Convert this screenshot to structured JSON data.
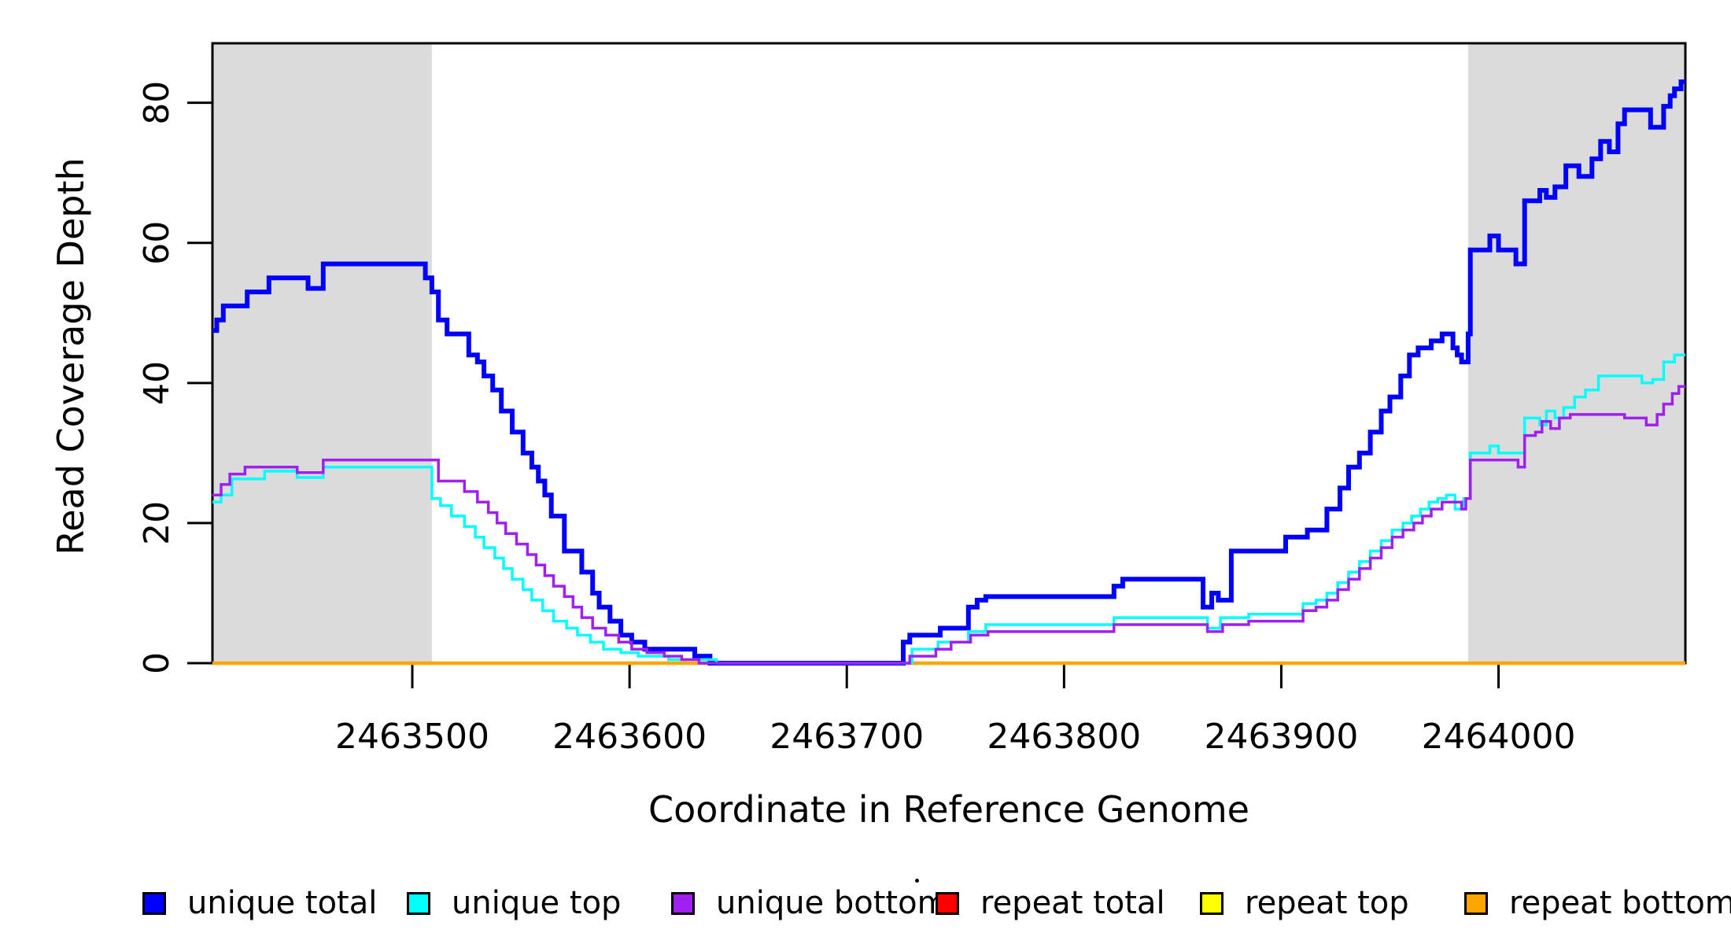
{
  "chart_data": {
    "type": "line",
    "subtype": "step-after",
    "title": "",
    "xlabel": "Coordinate in Reference Genome",
    "ylabel": "Read Coverage Depth",
    "grid": false,
    "x_axis": {
      "min": 2463408,
      "max": 2464086,
      "ticks": [
        2463500,
        2463600,
        2463700,
        2463800,
        2463900,
        2464000
      ],
      "tick_labels": [
        "2463500",
        "2463600",
        "2463700",
        "2463800",
        "2463900",
        "2464000"
      ]
    },
    "y_axis": {
      "min": 0,
      "max": 88.5,
      "ticks": [
        0,
        20,
        40,
        60,
        80
      ],
      "tick_labels": [
        "0",
        "20",
        "40",
        "60",
        "80"
      ]
    },
    "shade_color": "#DBDBDB",
    "shaded_regions": [
      {
        "from": 2463408,
        "to": 2463509
      },
      {
        "from": 2463986,
        "to": 2464086
      }
    ],
    "series": [
      {
        "name": "repeat total",
        "color": "#FF0000",
        "width": 4,
        "points": [
          [
            2463408,
            0
          ]
        ]
      },
      {
        "name": "repeat top",
        "color": "#FFFF00",
        "width": 4,
        "points": [
          [
            2463408,
            0
          ]
        ]
      },
      {
        "name": "repeat bottom",
        "color": "#FFA500",
        "width": 4.5,
        "points": [
          [
            2463408,
            0
          ]
        ]
      },
      {
        "name": "unique total",
        "color": "#0000FF",
        "width": 6,
        "points": [
          [
            2463408,
            47.5
          ],
          [
            2463410,
            49
          ],
          [
            2463413,
            51
          ],
          [
            2463424,
            53
          ],
          [
            2463434,
            55
          ],
          [
            2463452,
            53.5
          ],
          [
            2463459,
            57
          ],
          [
            2463506,
            55
          ],
          [
            2463509,
            53
          ],
          [
            2463512,
            49
          ],
          [
            2463516,
            47
          ],
          [
            2463526,
            44
          ],
          [
            2463530,
            43
          ],
          [
            2463533,
            41
          ],
          [
            2463537,
            39
          ],
          [
            2463541,
            36
          ],
          [
            2463546,
            33
          ],
          [
            2463551,
            30
          ],
          [
            2463555,
            28
          ],
          [
            2463558,
            26
          ],
          [
            2463561,
            24
          ],
          [
            2463564,
            21
          ],
          [
            2463570,
            16
          ],
          [
            2463578,
            13
          ],
          [
            2463583,
            10
          ],
          [
            2463586,
            8
          ],
          [
            2463591,
            6
          ],
          [
            2463596,
            4
          ],
          [
            2463601,
            3
          ],
          [
            2463607,
            2
          ],
          [
            2463630,
            1
          ],
          [
            2463637,
            0
          ],
          [
            2463726,
            3
          ],
          [
            2463729,
            4
          ],
          [
            2463743,
            5
          ],
          [
            2463756,
            8
          ],
          [
            2463760,
            9
          ],
          [
            2463764,
            9.5
          ],
          [
            2463823,
            11
          ],
          [
            2463827,
            12
          ],
          [
            2463864,
            8
          ],
          [
            2463868,
            10
          ],
          [
            2463871,
            9
          ],
          [
            2463877,
            16
          ],
          [
            2463902,
            18
          ],
          [
            2463912,
            19
          ],
          [
            2463921,
            22
          ],
          [
            2463927,
            25
          ],
          [
            2463931,
            28
          ],
          [
            2463936,
            30
          ],
          [
            2463941,
            33
          ],
          [
            2463946,
            36
          ],
          [
            2463950,
            38
          ],
          [
            2463955,
            41
          ],
          [
            2463959,
            44
          ],
          [
            2463963,
            45
          ],
          [
            2463969,
            46
          ],
          [
            2463974,
            47
          ],
          [
            2463979,
            45
          ],
          [
            2463981,
            44
          ],
          [
            2463983,
            43
          ],
          [
            2463986,
            47
          ],
          [
            2463987,
            59
          ],
          [
            2463996,
            61
          ],
          [
            2464000,
            59
          ],
          [
            2464008,
            57
          ],
          [
            2464012,
            66
          ],
          [
            2464019,
            67.5
          ],
          [
            2464022,
            66.5
          ],
          [
            2464026,
            68
          ],
          [
            2464031,
            71
          ],
          [
            2464037,
            69.5
          ],
          [
            2464043,
            72
          ],
          [
            2464047,
            74.5
          ],
          [
            2464051,
            73
          ],
          [
            2464055,
            77
          ],
          [
            2464058,
            79
          ],
          [
            2464070,
            76.5
          ],
          [
            2464076,
            79.5
          ],
          [
            2464079,
            81
          ],
          [
            2464081,
            82
          ],
          [
            2464084,
            83
          ]
        ]
      },
      {
        "name": "unique top",
        "color": "#00FFFF",
        "width": 3.5,
        "points": [
          [
            2463408,
            23
          ],
          [
            2463412,
            24
          ],
          [
            2463417,
            26.3
          ],
          [
            2463432,
            27.4
          ],
          [
            2463447,
            26.5
          ],
          [
            2463459,
            28
          ],
          [
            2463509,
            23.5
          ],
          [
            2463513,
            22.5
          ],
          [
            2463518,
            21
          ],
          [
            2463524,
            19.5
          ],
          [
            2463529,
            18
          ],
          [
            2463533,
            16.5
          ],
          [
            2463538,
            15
          ],
          [
            2463542,
            13.5
          ],
          [
            2463546,
            12
          ],
          [
            2463551,
            10.5
          ],
          [
            2463555,
            9
          ],
          [
            2463560,
            7.5
          ],
          [
            2463565,
            6
          ],
          [
            2463571,
            5
          ],
          [
            2463576,
            4
          ],
          [
            2463582,
            3
          ],
          [
            2463588,
            2
          ],
          [
            2463596,
            1.5
          ],
          [
            2463604,
            1
          ],
          [
            2463618,
            0.5
          ],
          [
            2463640,
            0
          ],
          [
            2463730,
            2
          ],
          [
            2463742,
            3
          ],
          [
            2463756,
            4.5
          ],
          [
            2463764,
            5.5
          ],
          [
            2463823,
            6.5
          ],
          [
            2463866,
            5
          ],
          [
            2463872,
            6.5
          ],
          [
            2463885,
            7
          ],
          [
            2463910,
            8.5
          ],
          [
            2463916,
            9
          ],
          [
            2463921,
            10
          ],
          [
            2463926,
            11.5
          ],
          [
            2463931,
            13
          ],
          [
            2463936,
            14.5
          ],
          [
            2463941,
            16
          ],
          [
            2463946,
            17.5
          ],
          [
            2463951,
            19
          ],
          [
            2463956,
            20
          ],
          [
            2463960,
            21
          ],
          [
            2463964,
            22
          ],
          [
            2463968,
            23
          ],
          [
            2463972,
            23.5
          ],
          [
            2463976,
            24
          ],
          [
            2463980,
            22
          ],
          [
            2463984,
            23.5
          ],
          [
            2463987,
            30
          ],
          [
            2463996,
            31
          ],
          [
            2464000,
            30
          ],
          [
            2464012,
            35
          ],
          [
            2464019,
            34
          ],
          [
            2464022,
            36
          ],
          [
            2464026,
            35
          ],
          [
            2464030,
            36.5
          ],
          [
            2464035,
            38
          ],
          [
            2464040,
            39
          ],
          [
            2464046,
            41
          ],
          [
            2464066,
            40
          ],
          [
            2464071,
            40.5
          ],
          [
            2464076,
            43
          ],
          [
            2464081,
            44
          ]
        ]
      },
      {
        "name": "unique bottom",
        "color": "#A020F0",
        "width": 3.5,
        "points": [
          [
            2463408,
            24
          ],
          [
            2463412,
            25.5
          ],
          [
            2463416,
            27
          ],
          [
            2463423,
            28
          ],
          [
            2463447,
            27.2
          ],
          [
            2463459,
            29
          ],
          [
            2463512,
            26
          ],
          [
            2463524,
            24.5
          ],
          [
            2463530,
            23
          ],
          [
            2463535,
            21.5
          ],
          [
            2463539,
            20
          ],
          [
            2463543,
            18.5
          ],
          [
            2463548,
            17
          ],
          [
            2463553,
            15.5
          ],
          [
            2463557,
            14
          ],
          [
            2463561,
            12.5
          ],
          [
            2463565,
            11
          ],
          [
            2463570,
            9.5
          ],
          [
            2463574,
            8
          ],
          [
            2463578,
            6.5
          ],
          [
            2463583,
            5
          ],
          [
            2463589,
            4
          ],
          [
            2463595,
            3
          ],
          [
            2463601,
            2
          ],
          [
            2463608,
            1.5
          ],
          [
            2463616,
            1
          ],
          [
            2463624,
            0.5
          ],
          [
            2463632,
            0
          ],
          [
            2463729,
            1
          ],
          [
            2463741,
            2
          ],
          [
            2463748,
            3
          ],
          [
            2463757,
            4
          ],
          [
            2463765,
            4.5
          ],
          [
            2463823,
            5.5
          ],
          [
            2463866,
            4.5
          ],
          [
            2463873,
            5.5
          ],
          [
            2463885,
            6
          ],
          [
            2463910,
            7.5
          ],
          [
            2463916,
            8
          ],
          [
            2463921,
            9
          ],
          [
            2463926,
            10.5
          ],
          [
            2463931,
            12
          ],
          [
            2463936,
            13.5
          ],
          [
            2463941,
            15
          ],
          [
            2463946,
            16.5
          ],
          [
            2463951,
            18
          ],
          [
            2463956,
            19
          ],
          [
            2463961,
            20
          ],
          [
            2463965,
            21
          ],
          [
            2463969,
            22
          ],
          [
            2463974,
            23
          ],
          [
            2463983,
            22
          ],
          [
            2463985,
            23.5
          ],
          [
            2463987,
            29
          ],
          [
            2464009,
            28
          ],
          [
            2464012,
            32.5
          ],
          [
            2464017,
            33
          ],
          [
            2464020,
            34.5
          ],
          [
            2464024,
            33.5
          ],
          [
            2464028,
            35
          ],
          [
            2464033,
            35.5
          ],
          [
            2464058,
            35
          ],
          [
            2464068,
            34
          ],
          [
            2464073,
            35.5
          ],
          [
            2464076,
            37
          ],
          [
            2464080,
            38.5
          ],
          [
            2464083,
            39.5
          ]
        ]
      }
    ],
    "legend": {
      "position": "bottom",
      "separator_dot": "",
      "entries": [
        {
          "label": "unique total",
          "color": "#0000FF"
        },
        {
          "label": "unique top",
          "color": "#00FFFF"
        },
        {
          "label": "unique bottom",
          "color": "#A020F0"
        },
        {
          "label": "repeat total",
          "color": "#FF0000"
        },
        {
          "label": "repeat top",
          "color": "#FFFF00"
        },
        {
          "label": "repeat bottom",
          "color": "#FFA500"
        }
      ]
    }
  },
  "layout_colors": {
    "axis": "#000000",
    "background": "#FFFFFF"
  }
}
